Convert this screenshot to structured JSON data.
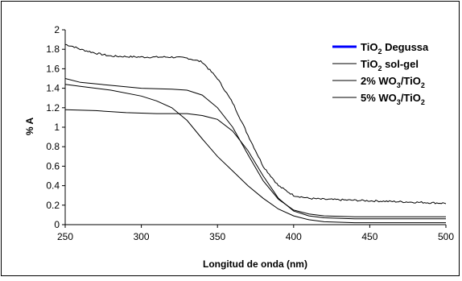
{
  "chart_data": {
    "type": "line",
    "xlabel": "Longitud de onda (nm)",
    "ylabel": "% A",
    "xlim": [
      250,
      500
    ],
    "ylim": [
      0,
      2
    ],
    "xticks": [
      "250",
      "300",
      "350",
      "400",
      "450",
      "500"
    ],
    "yticks": [
      "0",
      "0.2",
      "0.4",
      "0.6",
      "0.8",
      "1",
      "1.2",
      "1.4",
      "1.6",
      "1.8",
      "2"
    ],
    "grid": false,
    "legend_position": "top-right",
    "series": [
      {
        "name_main": "TiO",
        "name_sub": "2",
        "name_tail": " Degussa",
        "color": "#0000ff",
        "x": [
          250,
          270,
          290,
          310,
          320,
          330,
          340,
          350,
          360,
          370,
          380,
          390,
          400,
          410,
          420,
          440,
          460,
          480,
          500
        ],
        "y": [
          1.18,
          1.17,
          1.15,
          1.14,
          1.14,
          1.14,
          1.12,
          1.08,
          0.96,
          0.76,
          0.5,
          0.27,
          0.14,
          0.09,
          0.07,
          0.06,
          0.06,
          0.06,
          0.06
        ]
      },
      {
        "name_main": "TiO",
        "name_sub": "2",
        "name_tail": " sol-gel",
        "color": "#000000",
        "x": [
          250,
          255,
          260,
          270,
          280,
          300,
          320,
          330,
          340,
          350,
          360,
          370,
          380,
          390,
          400,
          410,
          420,
          440,
          460,
          480,
          500
        ],
        "y": [
          1.85,
          1.83,
          1.8,
          1.76,
          1.73,
          1.72,
          1.72,
          1.71,
          1.67,
          1.5,
          1.25,
          0.92,
          0.6,
          0.4,
          0.3,
          0.27,
          0.26,
          0.25,
          0.24,
          0.23,
          0.22
        ],
        "noise": true
      },
      {
        "name_main": "2% WO",
        "name_sub": "3",
        "name_tail": "/TiO",
        "name_sub2": "2",
        "color": "#000000",
        "x": [
          250,
          260,
          280,
          300,
          320,
          330,
          340,
          350,
          360,
          370,
          380,
          390,
          400,
          410,
          420,
          440,
          460,
          480,
          500
        ],
        "y": [
          1.5,
          1.46,
          1.43,
          1.4,
          1.39,
          1.38,
          1.33,
          1.2,
          1.0,
          0.72,
          0.45,
          0.26,
          0.15,
          0.11,
          0.09,
          0.08,
          0.08,
          0.08,
          0.08
        ]
      },
      {
        "name_main": "5% WO",
        "name_sub": "3",
        "name_tail": "/TiO",
        "name_sub2": "2",
        "color": "#000000",
        "x": [
          250,
          260,
          280,
          300,
          310,
          320,
          330,
          340,
          350,
          360,
          370,
          380,
          390,
          400,
          410,
          420,
          440,
          460,
          480,
          500
        ],
        "y": [
          1.44,
          1.42,
          1.38,
          1.32,
          1.27,
          1.2,
          1.07,
          0.88,
          0.7,
          0.55,
          0.4,
          0.27,
          0.16,
          0.09,
          0.05,
          0.03,
          0.02,
          0.02,
          0.02,
          0.02
        ]
      }
    ]
  }
}
